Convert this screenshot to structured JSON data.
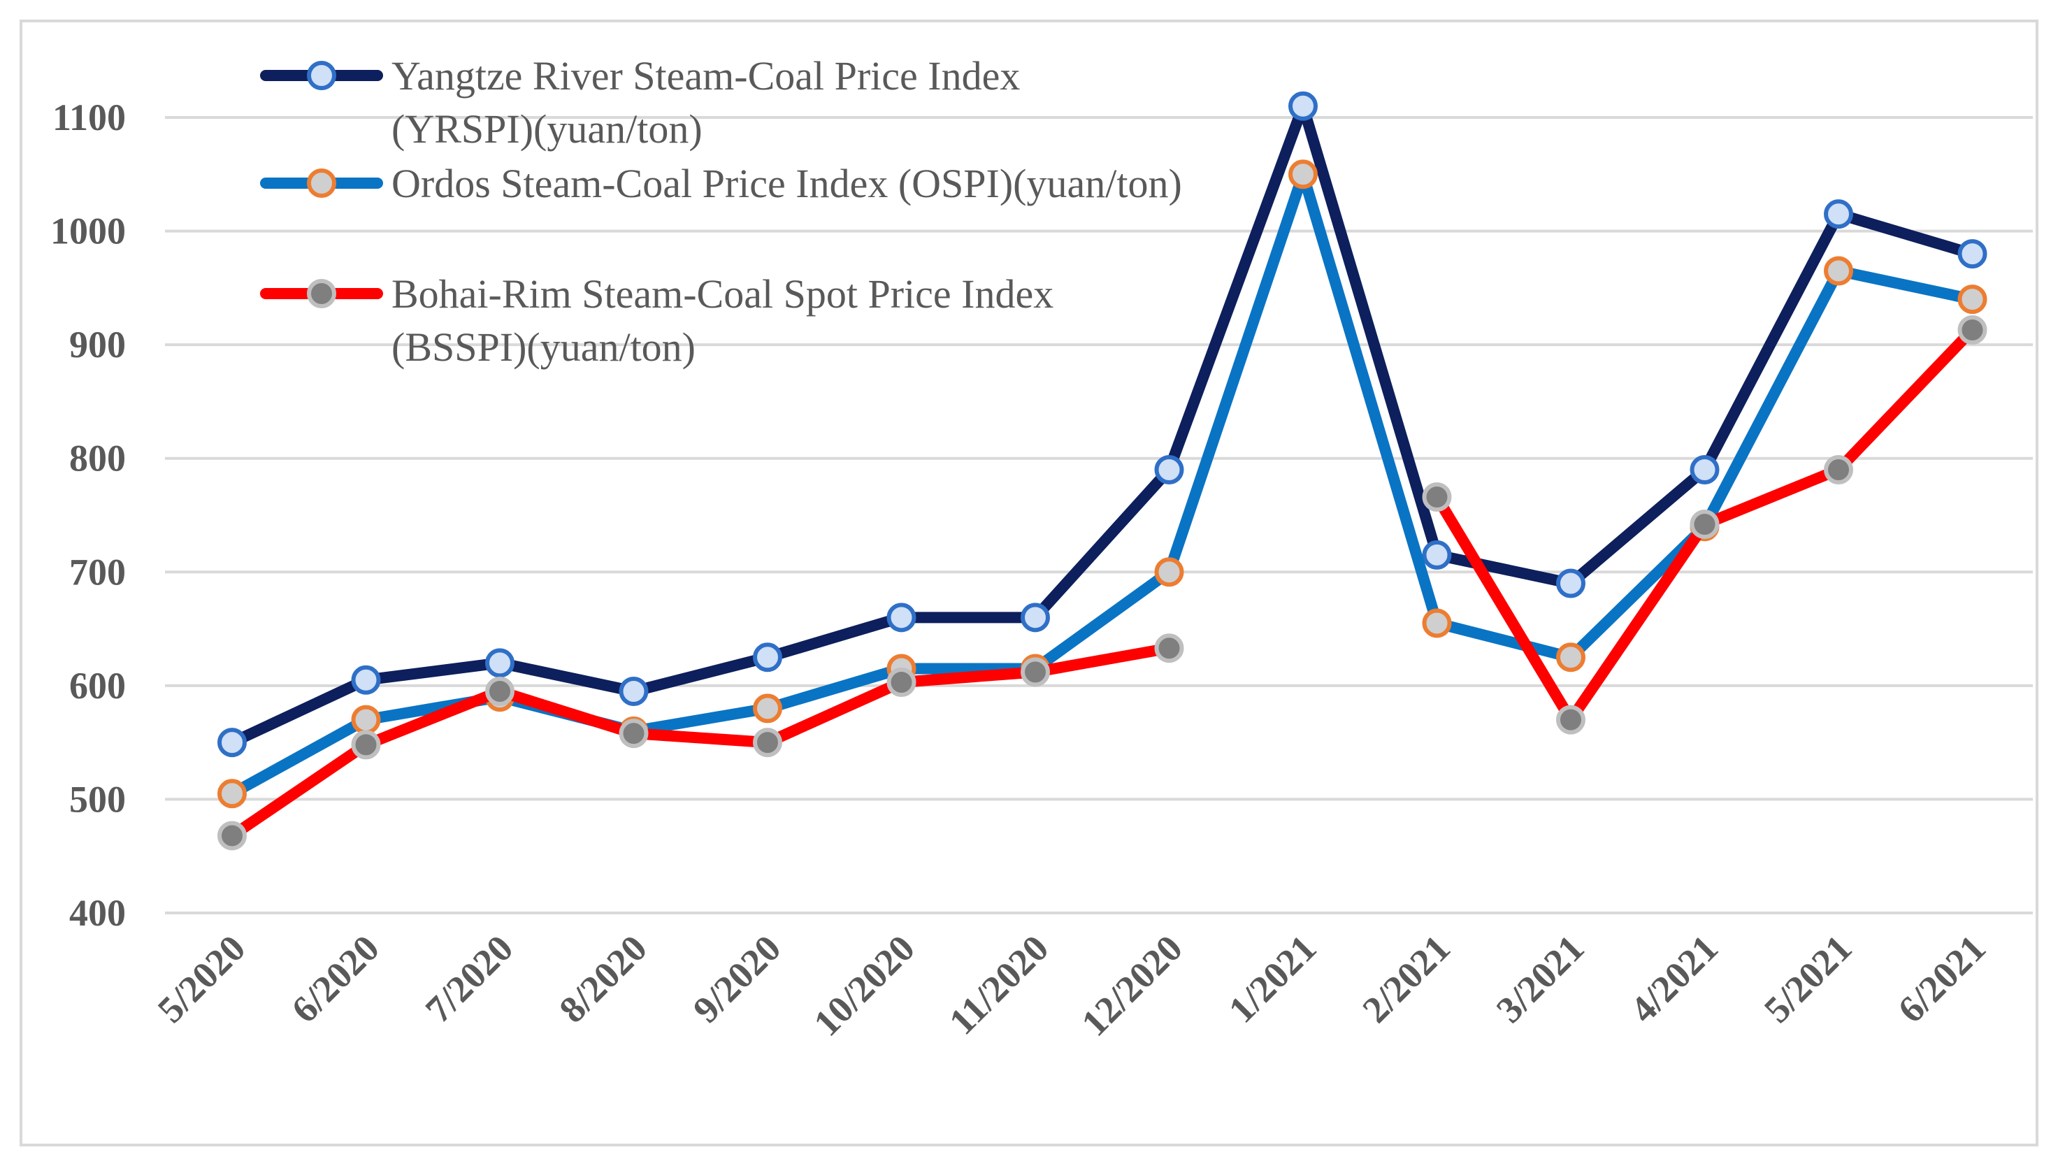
{
  "chart_data": {
    "type": "line",
    "title": "",
    "xlabel": "",
    "ylabel": "",
    "ylim": [
      400,
      1100
    ],
    "yticks": [
      400,
      500,
      600,
      700,
      800,
      900,
      1000,
      1100
    ],
    "grid": true,
    "legend_position": "top-left",
    "categories": [
      "5/2020",
      "6/2020",
      "7/2020",
      "8/2020",
      "9/2020",
      "10/2020",
      "11/2020",
      "12/2020",
      "1/2021",
      "2/2021",
      "3/2021",
      "4/2021",
      "5/2021",
      "6/2021"
    ],
    "series": [
      {
        "name": "Yangtze River Steam-Coal Price Index (YRSPI)(yuan/ton)",
        "legend_lines": [
          "Yangtze River Steam-Coal Price Index",
          "(YRSPI)(yuan/ton)"
        ],
        "line_color": "#0d1f5c",
        "marker_fill": "#cfe0f7",
        "marker_stroke": "#2f6fc7",
        "values": [
          550,
          605,
          620,
          595,
          625,
          660,
          660,
          790,
          1110,
          715,
          690,
          790,
          1015,
          980
        ]
      },
      {
        "name": "Ordos Steam-Coal Price Index (OSPI)(yuan/ton)",
        "legend_lines": [
          "Ordos Steam-Coal Price Index (OSPI)(yuan/ton)"
        ],
        "line_color": "#0a74c4",
        "marker_fill": "#cfcfcf",
        "marker_stroke": "#ed7d31",
        "values": [
          505,
          570,
          590,
          560,
          580,
          615,
          615,
          700,
          1050,
          655,
          625,
          740,
          965,
          940
        ]
      },
      {
        "name": "Bohai-Rim Steam-Coal Spot Price Index (BSSPI)(yuan/ton)",
        "legend_lines": [
          "Bohai-Rim Steam-Coal Spot Price Index",
          "(BSSPI)(yuan/ton)"
        ],
        "line_color": "#ff0000",
        "marker_fill": "#7f7f7f",
        "marker_stroke": "#bfbfbf",
        "values": [
          468,
          548,
          595,
          558,
          550,
          603,
          612,
          633,
          null,
          766,
          570,
          742,
          790,
          913
        ]
      }
    ]
  }
}
